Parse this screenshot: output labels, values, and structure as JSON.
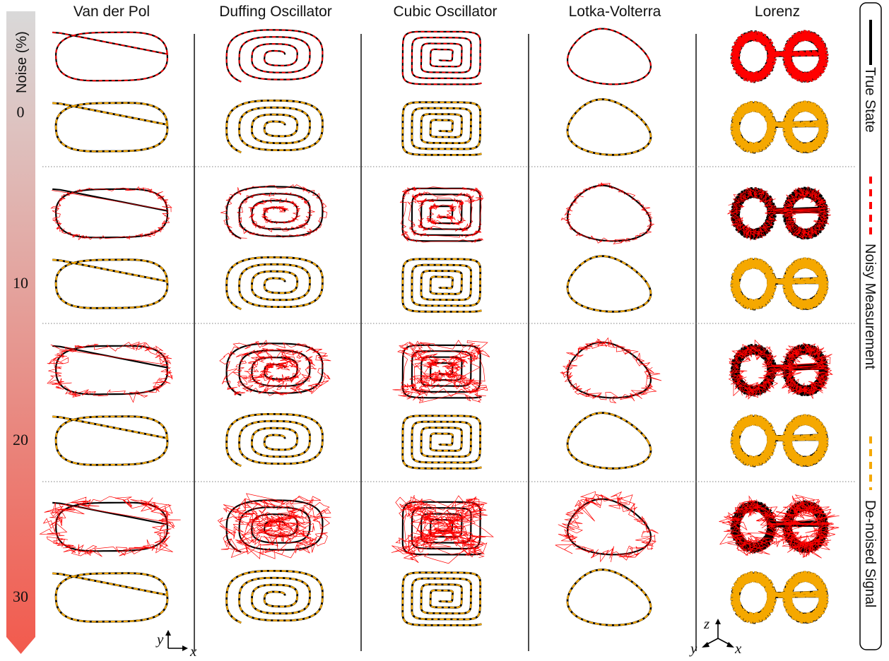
{
  "columns": [
    {
      "key": "vdp",
      "title": "Van der Pol",
      "shape": "vdp"
    },
    {
      "key": "duffing",
      "title": "Duffing Oscillator",
      "shape": "spiral_round"
    },
    {
      "key": "cubic",
      "title": "Cubic Oscillator",
      "shape": "spiral_square"
    },
    {
      "key": "lv",
      "title": "Lotka-Volterra",
      "shape": "triangle"
    },
    {
      "key": "lorenz",
      "title": "Lorenz",
      "shape": "butterfly"
    }
  ],
  "noise_axis": {
    "label": "Noise (%)",
    "levels": [
      0,
      10,
      20,
      30
    ]
  },
  "legend": {
    "items": [
      {
        "key": "true",
        "label": "True State",
        "style": "solid",
        "color": "#000000"
      },
      {
        "key": "noisy",
        "label": "Noisy Measurement",
        "style": "dashed",
        "color": "#ff0000"
      },
      {
        "key": "denoised",
        "label": "De-noised Signal",
        "style": "dashed",
        "color": "#f5a800"
      }
    ]
  },
  "axis_glyphs": {
    "planar": {
      "vertical": "y",
      "horizontal": "x"
    },
    "spatial": {
      "vertical": "z",
      "horizontal": "x",
      "diagonal": "y"
    }
  },
  "colors": {
    "true_state": "#000000",
    "noisy": "#ff0000",
    "denoised": "#f5a800",
    "gradient_top": "#d9d9d9",
    "gradient_bottom": "#f25a4d"
  }
}
